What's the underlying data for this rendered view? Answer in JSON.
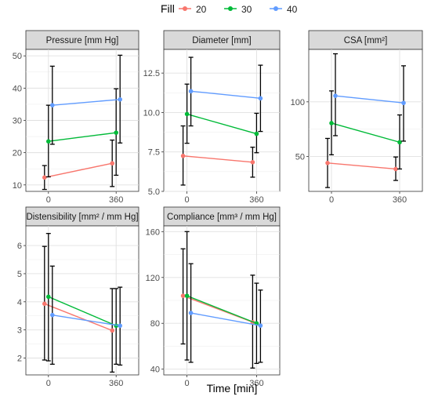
{
  "legend": {
    "title": "Fill",
    "items": [
      {
        "label": "20",
        "color": "#F8766D"
      },
      {
        "label": "30",
        "color": "#00BA38"
      },
      {
        "label": "40",
        "color": "#619CFF"
      }
    ]
  },
  "xlabel": "Time [min]",
  "chart_data": [
    {
      "type": "line",
      "title": "Pressure [mm Hg]",
      "x": [
        "0",
        "360"
      ],
      "ylim": [
        8,
        52
      ],
      "yticks": [
        10,
        20,
        30,
        40,
        50
      ],
      "grid": true,
      "series": [
        {
          "name": "20",
          "values": [
            12.3,
            16.7
          ],
          "err_low": [
            8.6,
            9.5
          ],
          "err_high": [
            16.0,
            23.9
          ]
        },
        {
          "name": "30",
          "values": [
            23.5,
            26.2
          ],
          "err_low": [
            12.5,
            13.0
          ],
          "err_high": [
            34.7,
            39.8
          ]
        },
        {
          "name": "40",
          "values": [
            34.7,
            36.5
          ],
          "err_low": [
            22.6,
            23.0
          ],
          "err_high": [
            46.8,
            50.2
          ]
        }
      ]
    },
    {
      "type": "line",
      "title": "Diameter [mm]",
      "x": [
        "0",
        "360"
      ],
      "ylim": [
        5.0,
        14.0
      ],
      "yticks": [
        5.0,
        7.5,
        10.0,
        12.5
      ],
      "grid": true,
      "series": [
        {
          "name": "20",
          "values": [
            7.25,
            6.85
          ],
          "err_low": [
            5.4,
            5.9
          ],
          "err_high": [
            9.15,
            7.8
          ]
        },
        {
          "name": "30",
          "values": [
            9.9,
            8.65
          ],
          "err_low": [
            8.05,
            7.45
          ],
          "err_high": [
            11.8,
            9.95
          ]
        },
        {
          "name": "40",
          "values": [
            11.35,
            10.9
          ],
          "err_low": [
            9.15,
            8.8
          ],
          "err_high": [
            13.5,
            13.0
          ]
        }
      ]
    },
    {
      "type": "line",
      "title": "CSA [mm²]",
      "x": [
        "0",
        "360"
      ],
      "ylim": [
        18,
        148
      ],
      "yticks": [
        50,
        100
      ],
      "grid": true,
      "series": [
        {
          "name": "20",
          "values": [
            44,
            38.5
          ],
          "err_low": [
            21.5,
            28.0
          ],
          "err_high": [
            66.5,
            49.5
          ]
        },
        {
          "name": "30",
          "values": [
            80.5,
            63
          ],
          "err_low": [
            51.5,
            38.5
          ],
          "err_high": [
            110,
            88
          ]
        },
        {
          "name": "40",
          "values": [
            105.5,
            99
          ],
          "err_low": [
            69,
            64
          ],
          "err_high": [
            144,
            133
          ]
        }
      ]
    },
    {
      "type": "line",
      "title": "Distensibility [mm² / mm Hg]",
      "x": [
        "0",
        "360"
      ],
      "ylim": [
        1.4,
        6.7
      ],
      "yticks": [
        2,
        3,
        4,
        5,
        6
      ],
      "grid": true,
      "series": [
        {
          "name": "20",
          "values": [
            3.93,
            2.98
          ],
          "err_low": [
            1.93,
            1.5
          ],
          "err_high": [
            5.97,
            4.47
          ]
        },
        {
          "name": "30",
          "values": [
            4.18,
            3.15
          ],
          "err_low": [
            1.9,
            1.78
          ],
          "err_high": [
            6.43,
            4.47
          ]
        },
        {
          "name": "40",
          "values": [
            3.53,
            3.15
          ],
          "err_low": [
            1.78,
            1.75
          ],
          "err_high": [
            5.27,
            4.52
          ]
        }
      ]
    },
    {
      "type": "line",
      "title": "Compliance [mm³ / mm Hg]",
      "x": [
        "0",
        "360"
      ],
      "ylim": [
        35,
        165
      ],
      "yticks": [
        40,
        80,
        120,
        160
      ],
      "grid": true,
      "series": [
        {
          "name": "20",
          "values": [
            104,
            81
          ],
          "err_low": [
            62,
            41
          ],
          "err_high": [
            145,
            122
          ]
        },
        {
          "name": "30",
          "values": [
            104,
            80
          ],
          "err_low": [
            48,
            45
          ],
          "err_high": [
            160,
            115
          ]
        },
        {
          "name": "40",
          "values": [
            89,
            78
          ],
          "err_low": [
            46,
            46
          ],
          "err_high": [
            132,
            109
          ]
        }
      ]
    }
  ]
}
